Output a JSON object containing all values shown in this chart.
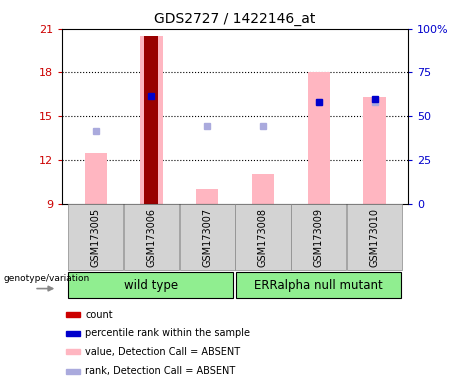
{
  "title": "GDS2727 / 1422146_at",
  "samples": [
    "GSM173005",
    "GSM173006",
    "GSM173007",
    "GSM173008",
    "GSM173009",
    "GSM173010"
  ],
  "ylim_left": [
    9,
    21
  ],
  "ylim_right": [
    0,
    100
  ],
  "yticks_left": [
    9,
    12,
    15,
    18,
    21
  ],
  "yticks_right": [
    0,
    25,
    50,
    75,
    100
  ],
  "ytick_labels_right": [
    "0",
    "25",
    "50",
    "75",
    "100%"
  ],
  "pink_bars": [
    12.5,
    20.5,
    10.0,
    11.0,
    18.0,
    16.3
  ],
  "dark_red_bar_index": 1,
  "dark_red_value": 20.5,
  "blue_squares_y": [
    null,
    16.4,
    null,
    null,
    16.0,
    16.2
  ],
  "light_blue_squares_y": [
    14.0,
    null,
    14.3,
    14.3,
    16.0,
    16.0
  ],
  "light_blue_on_dark": [
    false,
    true,
    false,
    false,
    true,
    true
  ],
  "tick_color_left": "#cc0000",
  "tick_color_right": "#0000cc",
  "pink_bar_color": "#FFB6C1",
  "dark_red_color": "#990000",
  "blue_square_color": "#0000cc",
  "light_blue_color": "#aaaadd",
  "label_gray_bg": "#d3d3d3",
  "group1_label": "wild type",
  "group2_label": "ERRalpha null mutant",
  "group_color": "#90EE90",
  "genotype_label": "genotype/variation",
  "legend_items": [
    {
      "color": "#cc0000",
      "label": "count"
    },
    {
      "color": "#0000cc",
      "label": "percentile rank within the sample"
    },
    {
      "color": "#FFB6C1",
      "label": "value, Detection Call = ABSENT"
    },
    {
      "color": "#aaaadd",
      "label": "rank, Detection Call = ABSENT"
    }
  ]
}
